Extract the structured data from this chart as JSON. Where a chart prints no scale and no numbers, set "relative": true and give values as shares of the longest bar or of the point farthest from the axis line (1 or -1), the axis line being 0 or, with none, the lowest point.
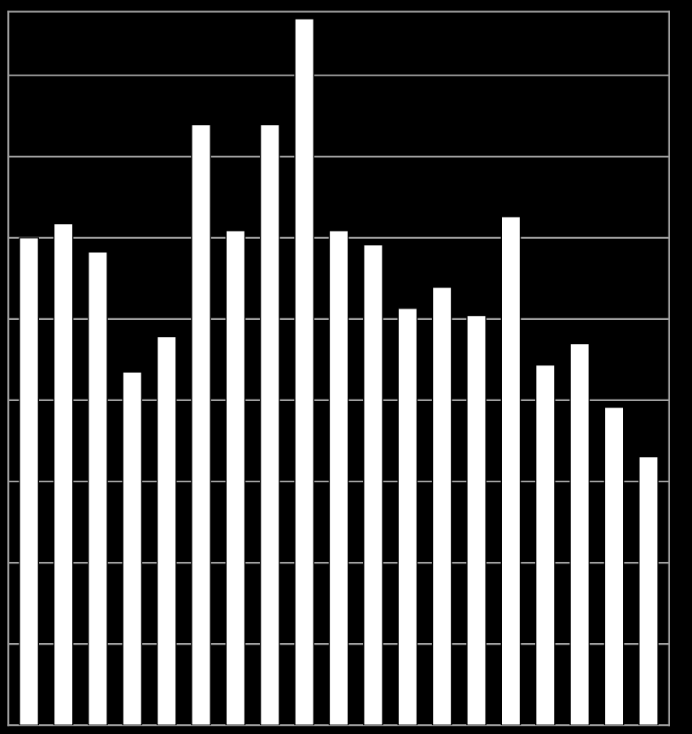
{
  "chart_data": {
    "type": "bar",
    "relative": true,
    "categories": [
      null,
      null,
      null,
      null,
      null,
      null,
      null,
      null,
      null,
      null,
      null,
      null,
      null,
      null,
      null,
      null,
      null,
      null,
      null
    ],
    "values": [
      0.69,
      0.71,
      0.67,
      0.5,
      0.55,
      0.85,
      0.7,
      0.85,
      1,
      0.7,
      0.68,
      0.59,
      0.62,
      0.58,
      0.72,
      0.51,
      0.54,
      0.45,
      0.38
    ],
    "color": "#ffffff",
    "grid": "y"
  }
}
